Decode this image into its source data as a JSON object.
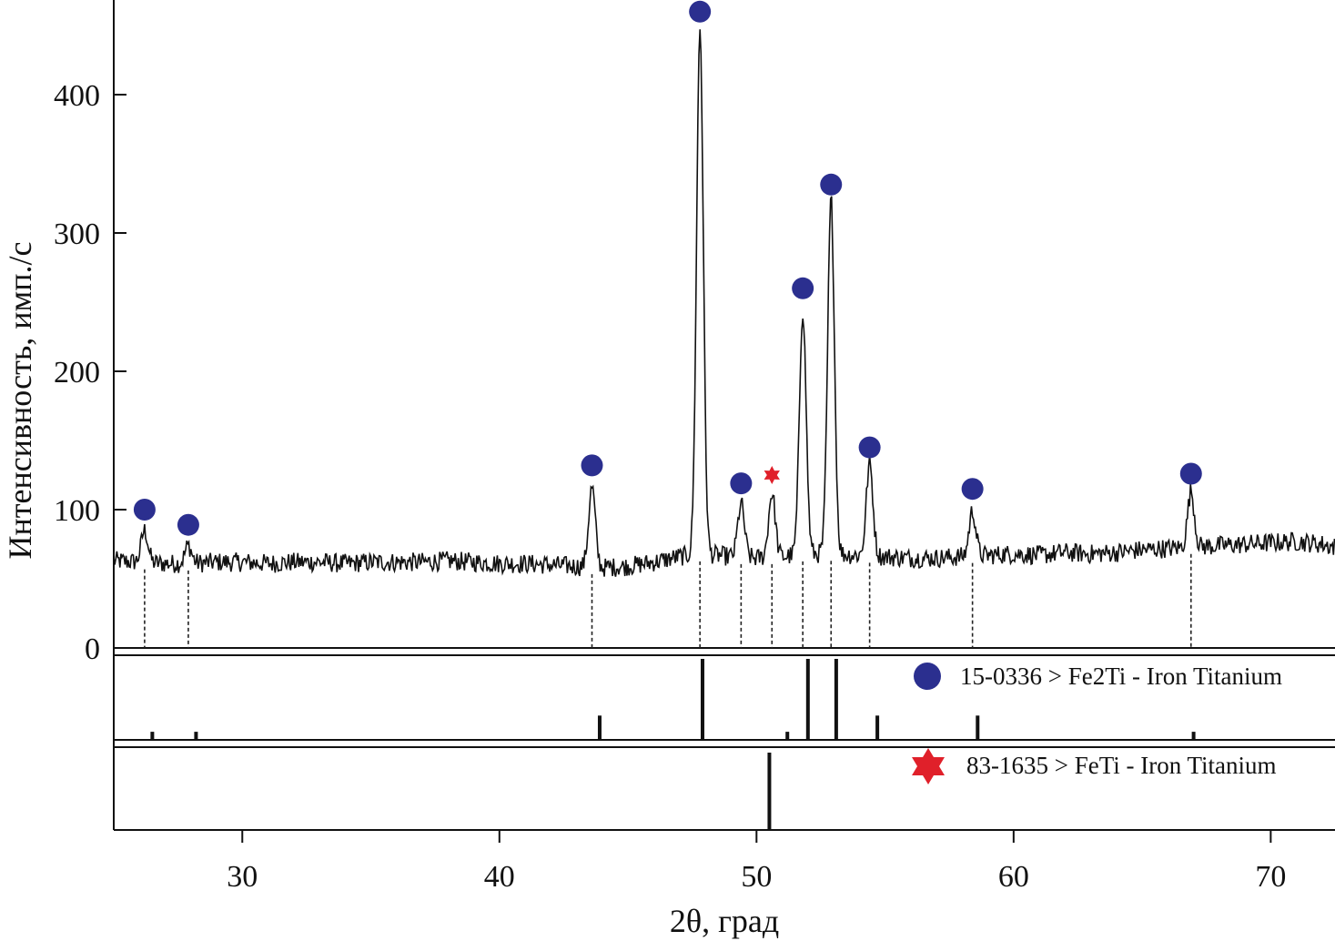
{
  "chart_data": {
    "type": "line",
    "xlabel": "2θ, град",
    "ylabel": "Интенсивность, имп./с",
    "xlim": [
      25,
      72.5
    ],
    "ylim": [
      0,
      460
    ],
    "x_ticks": [
      30,
      40,
      50,
      60,
      70
    ],
    "y_ticks": [
      0,
      100,
      200,
      300,
      400
    ],
    "grid": false,
    "legend_placement": "right, in reference panels",
    "colors": {
      "fe2ti_marker": "#2b2f8f",
      "feti_marker": "#e0202a",
      "line": "#111111"
    },
    "pattern": {
      "background": [
        [
          25,
          63
        ],
        [
          26,
          62
        ],
        [
          27,
          61
        ],
        [
          28,
          61
        ],
        [
          29,
          62
        ],
        [
          30,
          62
        ],
        [
          31,
          61
        ],
        [
          32,
          62
        ],
        [
          33,
          62
        ],
        [
          34,
          61
        ],
        [
          35,
          62
        ],
        [
          36,
          62
        ],
        [
          37,
          62
        ],
        [
          38,
          63
        ],
        [
          39,
          62
        ],
        [
          40,
          61
        ],
        [
          41,
          61
        ],
        [
          42,
          60
        ],
        [
          43,
          59
        ],
        [
          44,
          58
        ],
        [
          45,
          59
        ],
        [
          46,
          62
        ],
        [
          47,
          66
        ],
        [
          48,
          68
        ],
        [
          49,
          66
        ],
        [
          50,
          65
        ],
        [
          51,
          66
        ],
        [
          52,
          68
        ],
        [
          53,
          68
        ],
        [
          54,
          67
        ],
        [
          55,
          66
        ],
        [
          56,
          65
        ],
        [
          57,
          65
        ],
        [
          58,
          66
        ],
        [
          59,
          67
        ],
        [
          60,
          68
        ],
        [
          61,
          67
        ],
        [
          62,
          69
        ],
        [
          63,
          68
        ],
        [
          64,
          69
        ],
        [
          65,
          71
        ],
        [
          66,
          72
        ],
        [
          67,
          73
        ],
        [
          68,
          74
        ],
        [
          69,
          75
        ],
        [
          70,
          76
        ],
        [
          71,
          77
        ],
        [
          72,
          75
        ],
        [
          72.5,
          73
        ]
      ],
      "peaks": [
        {
          "x": 26.2,
          "y": 85
        },
        {
          "x": 27.9,
          "y": 74
        },
        {
          "x": 43.6,
          "y": 116
        },
        {
          "x": 47.8,
          "y": 448
        },
        {
          "x": 49.4,
          "y": 104
        },
        {
          "x": 50.6,
          "y": 112
        },
        {
          "x": 51.8,
          "y": 244
        },
        {
          "x": 52.9,
          "y": 324
        },
        {
          "x": 54.4,
          "y": 133
        },
        {
          "x": 58.4,
          "y": 99
        },
        {
          "x": 66.9,
          "y": 113
        }
      ]
    },
    "markers": [
      {
        "phase": "Fe2Ti",
        "x": 26.2,
        "y": 100
      },
      {
        "phase": "Fe2Ti",
        "x": 27.9,
        "y": 89
      },
      {
        "phase": "Fe2Ti",
        "x": 43.6,
        "y": 132
      },
      {
        "phase": "Fe2Ti",
        "x": 47.8,
        "y": 460
      },
      {
        "phase": "Fe2Ti",
        "x": 49.4,
        "y": 119
      },
      {
        "phase": "FeTi",
        "x": 50.6,
        "y": 125
      },
      {
        "phase": "Fe2Ti",
        "x": 51.8,
        "y": 260
      },
      {
        "phase": "Fe2Ti",
        "x": 52.9,
        "y": 335
      },
      {
        "phase": "Fe2Ti",
        "x": 54.4,
        "y": 145
      },
      {
        "phase": "Fe2Ti",
        "x": 58.4,
        "y": 115
      },
      {
        "phase": "Fe2Ti",
        "x": 66.9,
        "y": 126
      }
    ],
    "reference_patterns": [
      {
        "name": "15-0336 > Fe2Ti - Iron Titanium",
        "lines": [
          {
            "x": 26.5,
            "rel": 0.1
          },
          {
            "x": 28.2,
            "rel": 0.1
          },
          {
            "x": 43.9,
            "rel": 0.3
          },
          {
            "x": 47.9,
            "rel": 1.0
          },
          {
            "x": 51.2,
            "rel": 0.1
          },
          {
            "x": 52.0,
            "rel": 1.0
          },
          {
            "x": 53.1,
            "rel": 1.0
          },
          {
            "x": 54.7,
            "rel": 0.3
          },
          {
            "x": 58.6,
            "rel": 0.3
          },
          {
            "x": 67.0,
            "rel": 0.1
          }
        ]
      },
      {
        "name": "83-1635 > FeTi - Iron Titanium",
        "lines": [
          {
            "x": 50.5,
            "rel": 1.0
          }
        ]
      }
    ]
  }
}
